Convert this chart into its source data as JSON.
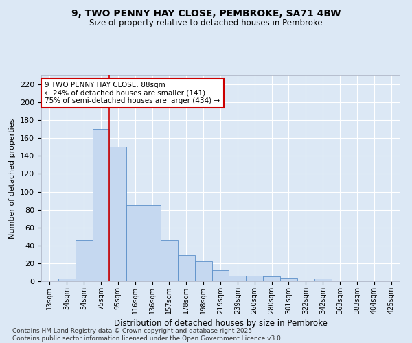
{
  "title_line1": "9, TWO PENNY HAY CLOSE, PEMBROKE, SA71 4BW",
  "title_line2": "Size of property relative to detached houses in Pembroke",
  "xlabel": "Distribution of detached houses by size in Pembroke",
  "ylabel": "Number of detached properties",
  "categories": [
    "13sqm",
    "34sqm",
    "54sqm",
    "75sqm",
    "95sqm",
    "116sqm",
    "136sqm",
    "157sqm",
    "178sqm",
    "198sqm",
    "219sqm",
    "239sqm",
    "260sqm",
    "280sqm",
    "301sqm",
    "322sqm",
    "342sqm",
    "363sqm",
    "383sqm",
    "404sqm",
    "425sqm"
  ],
  "values": [
    1,
    3,
    46,
    170,
    150,
    85,
    85,
    46,
    29,
    22,
    12,
    6,
    6,
    5,
    4,
    0,
    3,
    0,
    1,
    0,
    1
  ],
  "bar_color": "#c5d8f0",
  "bar_edge_color": "#5b8fc9",
  "background_color": "#dce8f5",
  "grid_color": "#ffffff",
  "vline_color": "#cc0000",
  "vline_x": 3.5,
  "annotation_text": "9 TWO PENNY HAY CLOSE: 88sqm\n← 24% of detached houses are smaller (141)\n75% of semi-detached houses are larger (434) →",
  "annotation_box_facecolor": "#ffffff",
  "annotation_box_edgecolor": "#cc0000",
  "ylim": [
    0,
    230
  ],
  "yticks": [
    0,
    20,
    40,
    60,
    80,
    100,
    120,
    140,
    160,
    180,
    200,
    220
  ],
  "footnote_line1": "Contains HM Land Registry data © Crown copyright and database right 2025.",
  "footnote_line2": "Contains public sector information licensed under the Open Government Licence v3.0."
}
